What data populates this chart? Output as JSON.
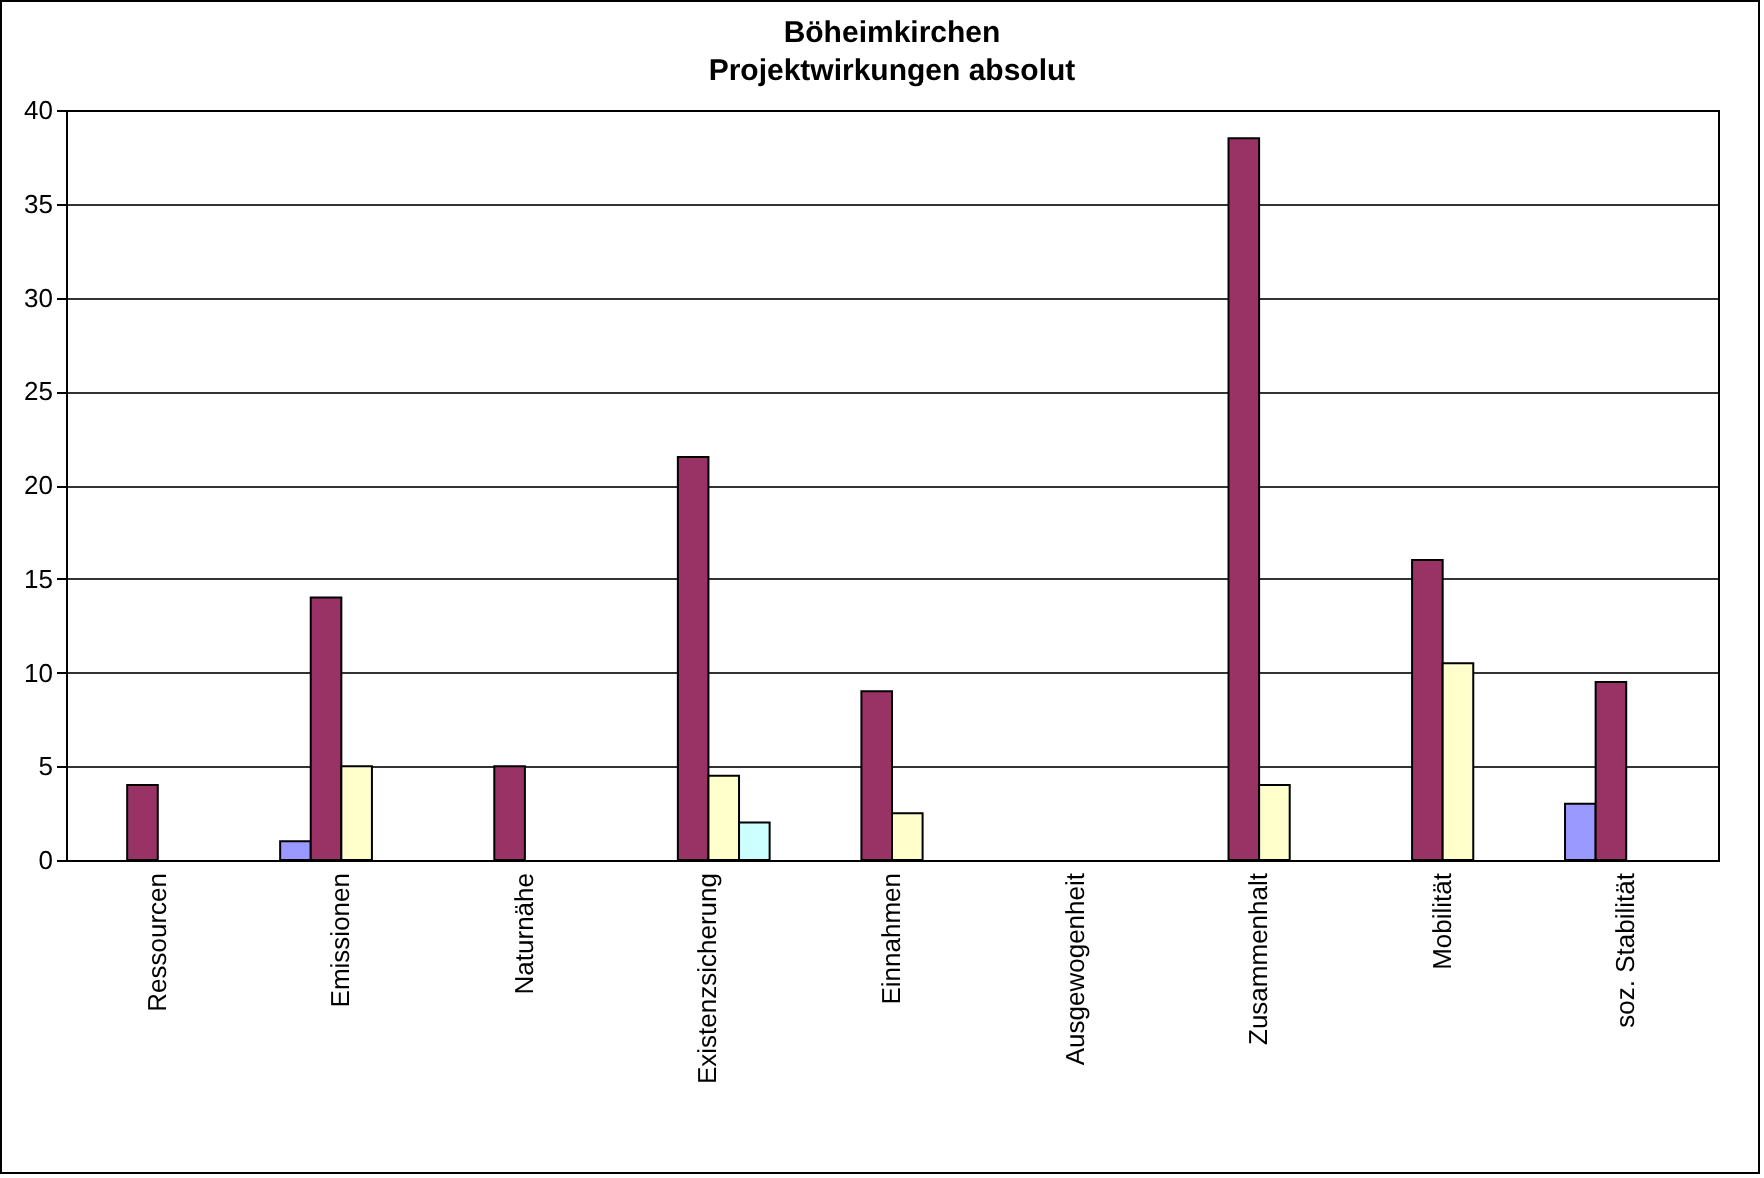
{
  "chart_data": {
    "type": "bar",
    "title": "Böheimkirchen",
    "subtitle": "Projektwirkungen absolut",
    "categories": [
      "Ressourcen",
      "Emissionen",
      "Naturnähe",
      "Existenzsicherung",
      "Einnahmen",
      "Ausgewogenheit",
      "Zusammenhalt",
      "Mobilität",
      "soz. Stabilität"
    ],
    "series": [
      {
        "color": "#9999ff",
        "values": [
          null,
          1,
          null,
          null,
          null,
          null,
          null,
          null,
          3
        ]
      },
      {
        "color": "#993366",
        "values": [
          4,
          14,
          5,
          21.5,
          9,
          null,
          38.5,
          16,
          9.5
        ]
      },
      {
        "color": "#ffffcc",
        "values": [
          null,
          5,
          null,
          4.5,
          2.5,
          null,
          4,
          10.5,
          null
        ]
      },
      {
        "color": "#ccffff",
        "values": [
          null,
          null,
          null,
          2,
          null,
          null,
          null,
          null,
          null
        ]
      }
    ],
    "ylim": [
      0,
      40
    ],
    "yticks": [
      0,
      5,
      10,
      15,
      20,
      25,
      30,
      35,
      40
    ],
    "grid": "y",
    "legend": false
  }
}
